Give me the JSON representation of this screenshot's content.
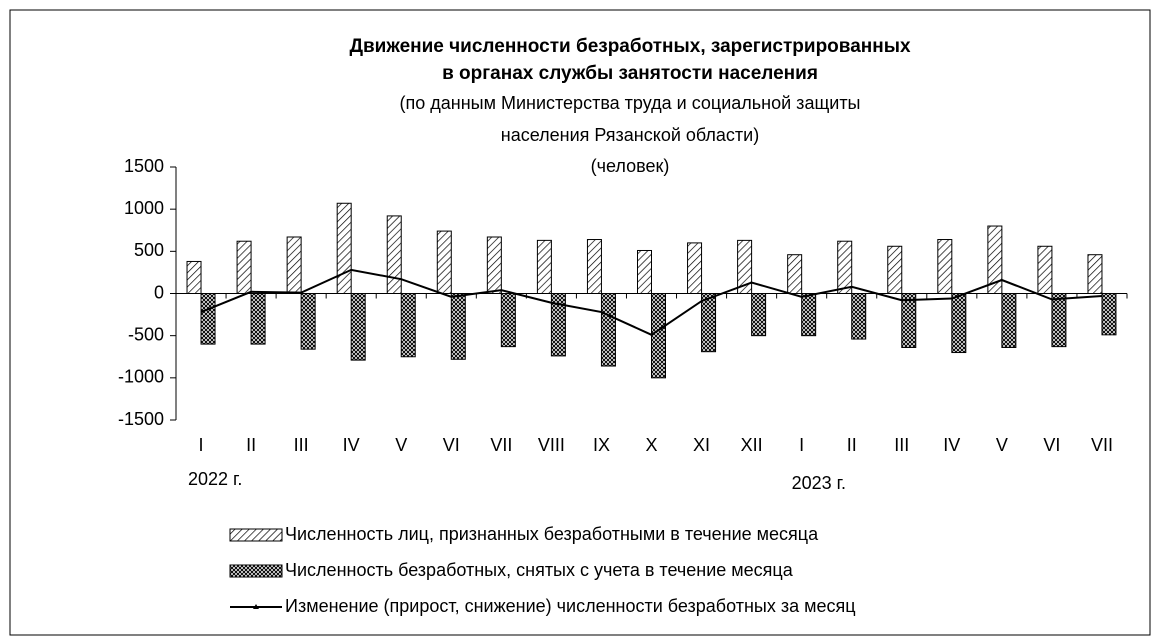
{
  "chart_data": {
    "type": "bar_line",
    "title": [
      "Движение численности безработных, зарегистрированных",
      "в органах службы занятости населения"
    ],
    "subtitle": [
      "(по данным Министерства труда и социальной защиты",
      "населения Рязанской области)",
      "(человек)"
    ],
    "categories": [
      "I",
      "II",
      "III",
      "IV",
      "V",
      "VI",
      "VII",
      "VIII",
      "IX",
      "X",
      "XI",
      "XII",
      "I",
      "II",
      "III",
      "IV",
      "V",
      "VI",
      "VII"
    ],
    "annotations": [
      "2022 г.",
      "2023 г."
    ],
    "series": [
      {
        "name": "Численность лиц, признанных безработными в течение месяца",
        "kind": "bar",
        "pattern": "diagonal",
        "color": "#000000",
        "values": [
          380,
          620,
          670,
          1070,
          920,
          740,
          670,
          630,
          640,
          510,
          600,
          630,
          460,
          620,
          560,
          640,
          800,
          560,
          460
        ]
      },
      {
        "name": "Численность безработных, снятых с учета в течение месяца",
        "kind": "bar",
        "pattern": "crosshatch",
        "color": "#000000",
        "values": [
          -600,
          -600,
          -660,
          -790,
          -750,
          -780,
          -630,
          -740,
          -860,
          -1000,
          -690,
          -500,
          -500,
          -540,
          -640,
          -700,
          -640,
          -630,
          -490
        ]
      },
      {
        "name": "Изменение (прирост, снижение) численности безработных за месяц",
        "kind": "line",
        "color": "#000000",
        "values": [
          -220,
          20,
          10,
          280,
          170,
          -40,
          40,
          -110,
          -220,
          -490,
          -90,
          130,
          -40,
          80,
          -80,
          -60,
          160,
          -70,
          -30
        ]
      }
    ],
    "ylim": [
      -1500,
      1500
    ],
    "yticks": [
      -1500,
      -1000,
      -500,
      0,
      500,
      1000,
      1500
    ],
    "grid": false
  }
}
